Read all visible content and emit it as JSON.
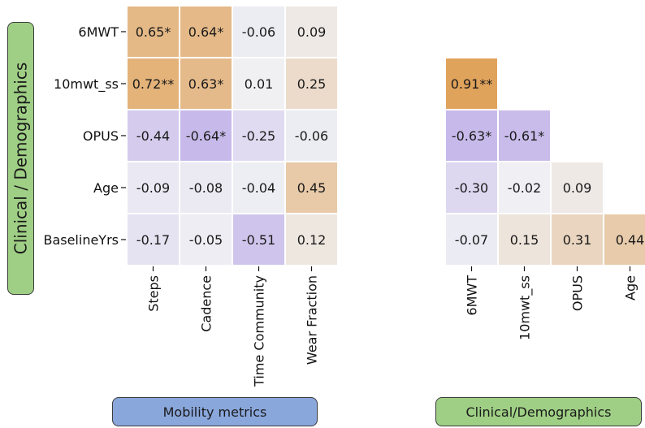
{
  "side_label": "Clinical / Demographics",
  "bottom_labels": {
    "mobility": "Mobility metrics",
    "clinical": "Clinical/Demographics"
  },
  "colors": {
    "green_box": "#9fcf85",
    "blue_box": "#8aa7dc",
    "positive_strong": "#e0a35c",
    "negative_strong": "#b6a3e6",
    "neutral": "#f0f1f4"
  },
  "chart_data": [
    {
      "type": "heatmap",
      "rows": [
        "6MWT",
        "10mwt_ss",
        "OPUS",
        "Age",
        "BaselineYrs"
      ],
      "columns": [
        "Steps",
        "Cadence",
        "Time Community",
        "Wear Fraction"
      ],
      "cells": [
        [
          "0.65*",
          "0.64*",
          "-0.06",
          "0.09"
        ],
        [
          "0.72**",
          "0.63*",
          "0.01",
          "0.25"
        ],
        [
          "-0.44",
          "-0.64*",
          "-0.25",
          "-0.06"
        ],
        [
          "-0.09",
          "-0.08",
          "-0.04",
          "0.45"
        ],
        [
          "-0.17",
          "-0.05",
          "-0.51",
          "0.12"
        ]
      ],
      "values": [
        [
          0.65,
          0.64,
          -0.06,
          0.09
        ],
        [
          0.72,
          0.63,
          0.01,
          0.25
        ],
        [
          -0.44,
          -0.64,
          -0.25,
          -0.06
        ],
        [
          -0.09,
          -0.08,
          -0.04,
          0.45
        ],
        [
          -0.17,
          -0.05,
          -0.51,
          0.12
        ]
      ]
    },
    {
      "type": "heatmap",
      "rows": [
        "6MWT",
        "10mwt_ss",
        "OPUS",
        "Age",
        "BaselineYrs"
      ],
      "columns": [
        "6MWT",
        "10mwt_ss",
        "OPUS",
        "Age"
      ],
      "lower_triangle": true,
      "cells": [
        [
          "",
          "",
          "",
          ""
        ],
        [
          "0.91**",
          "",
          "",
          ""
        ],
        [
          "-0.63*",
          "-0.61*",
          "",
          ""
        ],
        [
          "-0.30",
          "-0.02",
          "0.09",
          ""
        ],
        [
          "-0.07",
          "0.15",
          "0.31",
          "0.44"
        ]
      ],
      "values": [
        [
          null,
          null,
          null,
          null
        ],
        [
          0.91,
          null,
          null,
          null
        ],
        [
          -0.63,
          -0.61,
          null,
          null
        ],
        [
          -0.3,
          -0.02,
          0.09,
          null
        ],
        [
          -0.07,
          0.15,
          0.31,
          0.44
        ]
      ]
    }
  ]
}
